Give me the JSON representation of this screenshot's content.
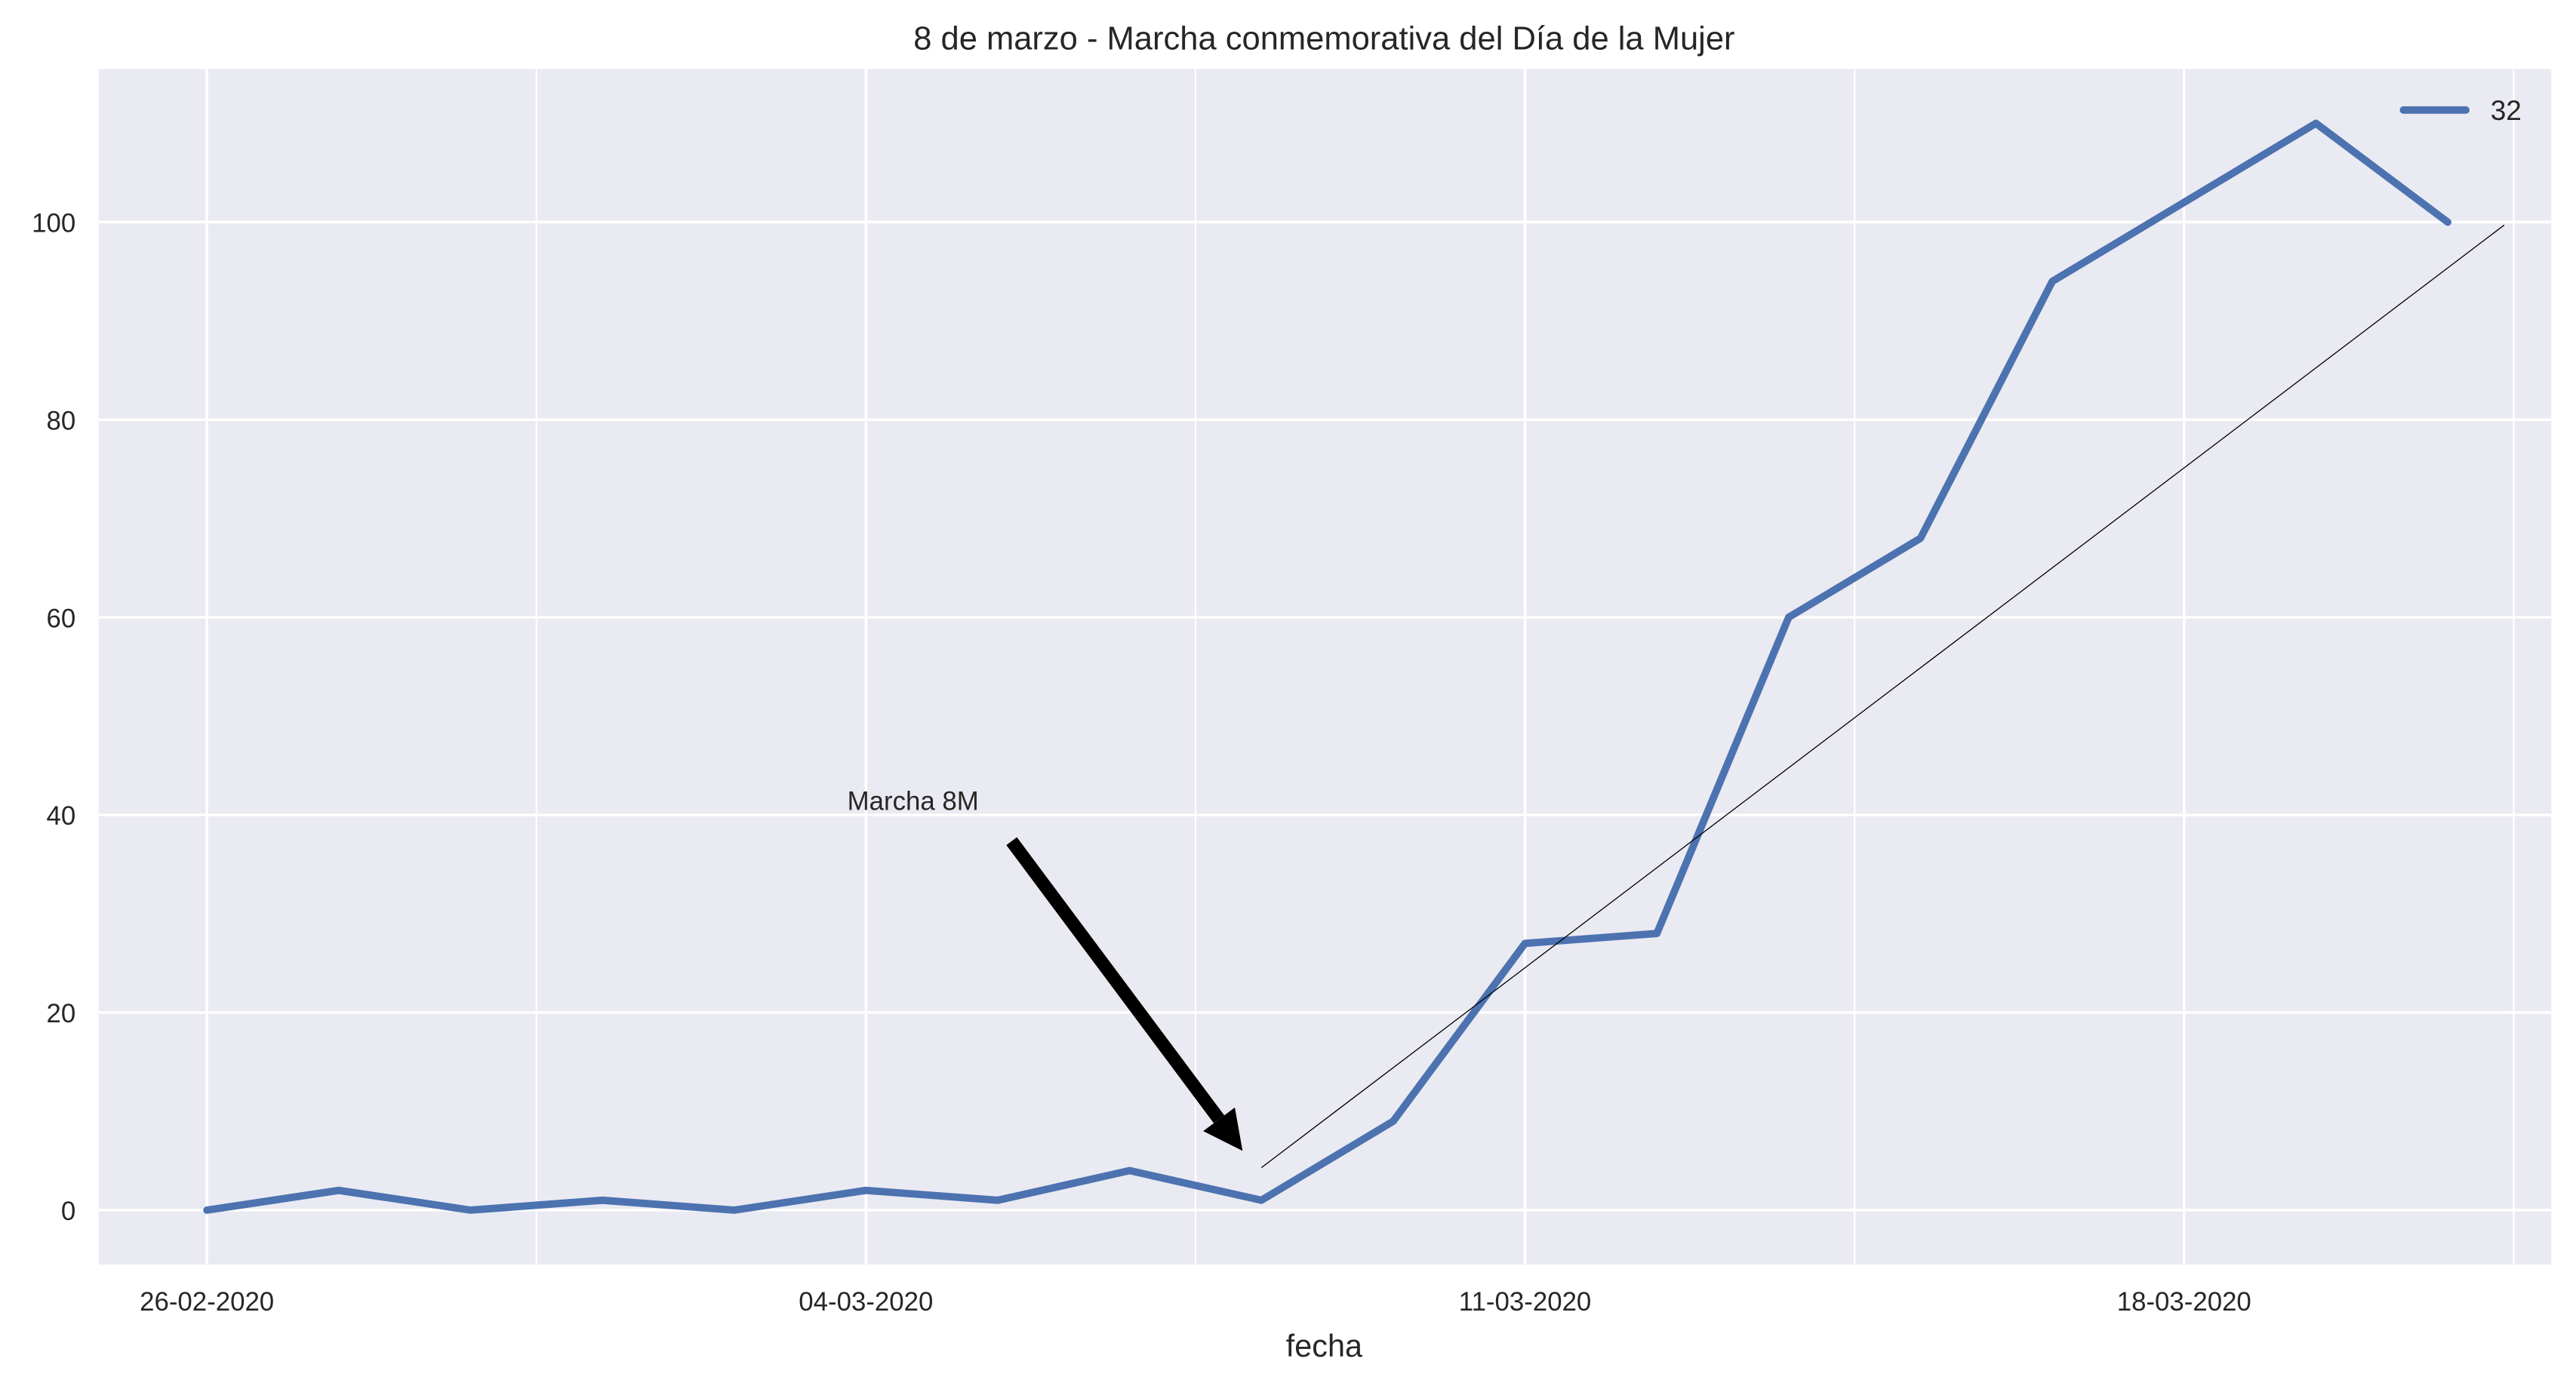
{
  "chart_data": {
    "type": "line",
    "title": "8 de marzo - Marcha conmemorativa del Día de la Mujer",
    "xlabel": "fecha",
    "x": [
      0,
      1.4,
      2.8,
      4.2,
      5.6,
      7,
      8.4,
      9.8,
      11.2,
      12.6,
      14,
      15.4,
      16.8,
      18.2,
      19.6,
      21,
      22.4,
      23.8
    ],
    "series": [
      {
        "name": "32",
        "color": "#4c72b0",
        "values": [
          0,
          2,
          0,
          1,
          0,
          2,
          1,
          4,
          1,
          9,
          27,
          28,
          60,
          68,
          94,
          102,
          110,
          100
        ]
      }
    ],
    "trend_line": {
      "x": [
        11.2,
        24.4
      ],
      "y": [
        4.3,
        99.7
      ],
      "color": "#000000"
    },
    "annotation": {
      "text": "Marcha 8M",
      "xy": [
        11,
        6
      ],
      "xytext": [
        7.5,
        41.5
      ]
    },
    "xlim": [
      -1.15,
      24.9
    ],
    "xticks": [
      {
        "value": 0,
        "label": "26-02-2020"
      },
      {
        "value": 7,
        "label": "04-03-2020"
      },
      {
        "value": 14,
        "label": "11-03-2020"
      },
      {
        "value": 21,
        "label": "18-03-2020"
      }
    ],
    "xminorticks": [
      3.5,
      10.5,
      17.5,
      24.5
    ],
    "ylim": [
      -5.5,
      115.5
    ],
    "yticks": [
      0,
      20,
      40,
      60,
      80,
      100
    ],
    "grid": true,
    "legend": "upper right"
  }
}
